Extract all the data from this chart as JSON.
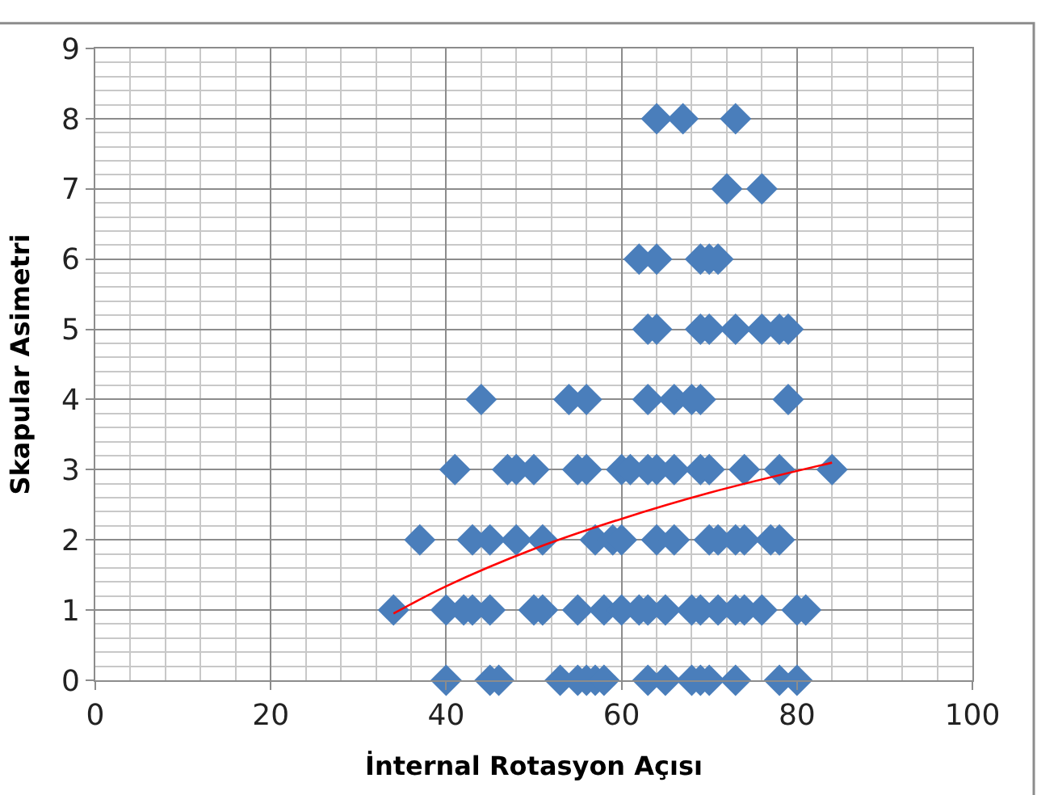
{
  "chart_data": {
    "type": "scatter",
    "xlabel": "İnternal Rotasyon Açısı",
    "ylabel": "Skapular Asimetri",
    "xlim": [
      0,
      100
    ],
    "xticks": [
      0,
      20,
      40,
      60,
      80,
      100
    ],
    "ylim": [
      0,
      9
    ],
    "yticks": [
      0,
      1,
      2,
      3,
      4,
      5,
      6,
      7,
      8,
      9
    ],
    "grid": true,
    "legend": false,
    "marker": "diamond",
    "series": [
      {
        "color": "#4a7ebb",
        "x": [
          64,
          67,
          73,
          72,
          76,
          62,
          64,
          69,
          70,
          71,
          63,
          64,
          69,
          70,
          73,
          76,
          78,
          79,
          44,
          54,
          56,
          63,
          66,
          68,
          69,
          79,
          41,
          47,
          48,
          50,
          55,
          56,
          60,
          61,
          63,
          64,
          66,
          69,
          70,
          74,
          78,
          84,
          37,
          43,
          45,
          48,
          51,
          57,
          59,
          60,
          64,
          66,
          70,
          71,
          73,
          74,
          77,
          78,
          34,
          40,
          42,
          43,
          45,
          50,
          51,
          55,
          58,
          60,
          62,
          63,
          65,
          68,
          69,
          71,
          73,
          74,
          76,
          80,
          81,
          40,
          45,
          46,
          53,
          55,
          56,
          57,
          58,
          63,
          65,
          68,
          69,
          70,
          73,
          78,
          80
        ],
        "values": [
          8,
          8,
          8,
          7,
          7,
          6,
          6,
          6,
          6,
          6,
          5,
          5,
          5,
          5,
          5,
          5,
          5,
          5,
          4,
          4,
          4,
          4,
          4,
          4,
          4,
          4,
          3,
          3,
          3,
          3,
          3,
          3,
          3,
          3,
          3,
          3,
          3,
          3,
          3,
          3,
          3,
          3,
          2,
          2,
          2,
          2,
          2,
          2,
          2,
          2,
          2,
          2,
          2,
          2,
          2,
          2,
          2,
          2,
          1,
          1,
          1,
          1,
          1,
          1,
          1,
          1,
          1,
          1,
          1,
          1,
          1,
          1,
          1,
          1,
          1,
          1,
          1,
          1,
          1,
          0,
          0,
          0,
          0,
          0,
          0,
          0,
          0,
          0,
          0,
          0,
          0,
          0,
          0,
          0,
          0
        ]
      },
      {
        "type": "line",
        "color": "#ff0000",
        "marker": "none",
        "x": [
          34,
          40,
          50,
          60,
          70,
          84
        ],
        "values": [
          0.95,
          1.34,
          1.87,
          2.3,
          2.67,
          3.1
        ]
      }
    ]
  }
}
